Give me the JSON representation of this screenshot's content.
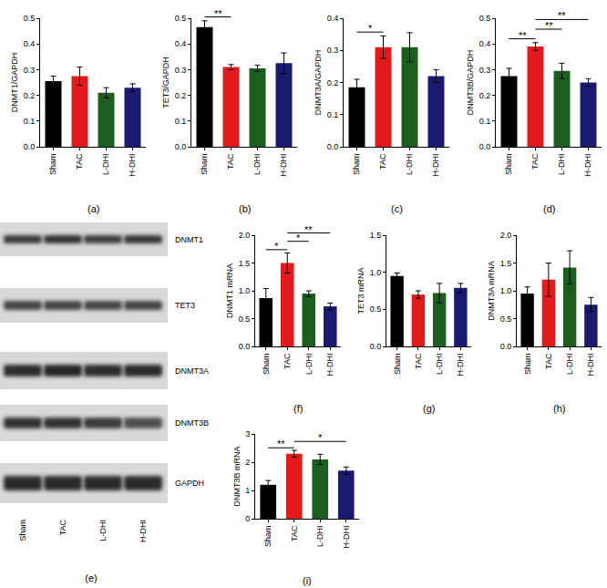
{
  "chart_data": [
    {
      "type": "bar",
      "title": "(a)",
      "y_label": "DNMT1/GAPDH",
      "categories": [
        "Sham",
        "TAC",
        "L-DHI",
        "H-DHI"
      ],
      "values": [
        0.255,
        0.275,
        0.21,
        0.23
      ],
      "errors": [
        0.02,
        0.035,
        0.02,
        0.015
      ],
      "colors": [
        "#000000",
        "#e31a1c",
        "#1b5e20",
        "#1a1a70"
      ],
      "ylim": [
        0,
        0.5
      ],
      "yticks": [
        {
          "value": 0,
          "label": "0.0"
        },
        0.1,
        0.2,
        0.3,
        0.4,
        0.5
      ],
      "significance": []
    },
    {
      "type": "bar",
      "title": "(b)",
      "y_label": "TET3/GAPDH",
      "categories": [
        "Sham",
        "TAC",
        "L-DHI",
        "H-DHI"
      ],
      "values": [
        0.465,
        0.31,
        0.305,
        0.325
      ],
      "errors": [
        0.025,
        0.01,
        0.012,
        0.04
      ],
      "colors": [
        "#000000",
        "#e31a1c",
        "#1b5e20",
        "#1a1a70"
      ],
      "ylim": [
        0,
        0.5
      ],
      "yticks": [
        {
          "value": 0,
          "label": "0.0"
        },
        0.1,
        0.2,
        0.3,
        0.4,
        0.5
      ],
      "significance": [
        {
          "from": "Sham",
          "to": "TAC",
          "text": "**"
        }
      ]
    },
    {
      "type": "bar",
      "title": "(c)",
      "y_label": "DNMT3A/GAPDH",
      "categories": [
        "Sham",
        "TAC",
        "L-DHI",
        "H-DHI"
      ],
      "values": [
        0.185,
        0.31,
        0.31,
        0.22
      ],
      "errors": [
        0.025,
        0.035,
        0.045,
        0.02
      ],
      "colors": [
        "#000000",
        "#e31a1c",
        "#1b5e20",
        "#1a1a70"
      ],
      "ylim": [
        0,
        0.4
      ],
      "yticks": [
        {
          "value": 0,
          "label": "0.0"
        },
        0.1,
        0.2,
        0.3,
        0.4
      ],
      "significance": [
        {
          "from": "Sham",
          "to": "TAC",
          "text": "*"
        }
      ]
    },
    {
      "type": "bar",
      "title": "(d)",
      "y_label": "DNMT3B/GAPDH",
      "categories": [
        "Sham",
        "TAC",
        "L-DHI",
        "H-DHI"
      ],
      "values": [
        0.275,
        0.39,
        0.295,
        0.25
      ],
      "errors": [
        0.03,
        0.015,
        0.03,
        0.015
      ],
      "colors": [
        "#000000",
        "#e31a1c",
        "#1b5e20",
        "#1a1a70"
      ],
      "ylim": [
        0,
        0.5
      ],
      "yticks": [
        {
          "value": 0,
          "label": "0.0"
        },
        0.1,
        0.2,
        0.3,
        0.4,
        0.5
      ],
      "significance": [
        {
          "from": "Sham",
          "to": "TAC",
          "text": "**"
        },
        {
          "from": "TAC",
          "to": "L-DHI",
          "text": "**"
        },
        {
          "from": "TAC",
          "to": "H-DHI",
          "text": "**"
        }
      ]
    },
    {
      "type": "bar",
      "title": "(f)",
      "y_label": "DNMT1 mRNA",
      "categories": [
        "Sham",
        "TAC",
        "L-DHI",
        "H-DHI"
      ],
      "values": [
        0.87,
        1.5,
        0.95,
        0.72
      ],
      "errors": [
        0.17,
        0.18,
        0.05,
        0.06
      ],
      "colors": [
        "#000000",
        "#e31a1c",
        "#1b5e20",
        "#1a1a70"
      ],
      "ylim": [
        0,
        2
      ],
      "yticks": [
        {
          "value": 0,
          "label": "0.0"
        },
        0.5,
        {
          "value": 1,
          "label": "1.0"
        },
        1.5,
        {
          "value": 2,
          "label": "2.0"
        }
      ],
      "significance": [
        {
          "from": "Sham",
          "to": "TAC",
          "text": "*"
        },
        {
          "from": "TAC",
          "to": "L-DHI",
          "text": "*"
        },
        {
          "from": "TAC",
          "to": "H-DHI",
          "text": "**"
        }
      ]
    },
    {
      "type": "bar",
      "title": "(g)",
      "y_label": "TET3 mRNA",
      "categories": [
        "Sham",
        "TAC",
        "L-DHI",
        "H-DHI"
      ],
      "values": [
        0.95,
        0.7,
        0.72,
        0.79
      ],
      "errors": [
        0.04,
        0.05,
        0.13,
        0.06
      ],
      "colors": [
        "#000000",
        "#e31a1c",
        "#1b5e20",
        "#1a1a70"
      ],
      "ylim": [
        0,
        1.5
      ],
      "yticks": [
        {
          "value": 0,
          "label": "0.0"
        },
        0.5,
        {
          "value": 1,
          "label": "1.0"
        },
        1.5
      ],
      "significance": []
    },
    {
      "type": "bar",
      "title": "(h)",
      "y_label": "DNMT3A mRNA",
      "categories": [
        "Sham",
        "TAC",
        "L-DHI",
        "H-DHI"
      ],
      "values": [
        0.95,
        1.2,
        1.42,
        0.75
      ],
      "errors": [
        0.12,
        0.3,
        0.3,
        0.13
      ],
      "colors": [
        "#000000",
        "#e31a1c",
        "#1b5e20",
        "#1a1a70"
      ],
      "ylim": [
        0,
        2
      ],
      "yticks": [
        {
          "value": 0,
          "label": "0.0"
        },
        0.5,
        {
          "value": 1,
          "label": "1.0"
        },
        1.5,
        {
          "value": 2,
          "label": "2.0"
        }
      ],
      "significance": []
    },
    {
      "type": "bar",
      "title": "(i)",
      "y_label": "DNMT3B mRNA",
      "categories": [
        "Sham",
        "TAC",
        "L-DHI",
        "H-DHI"
      ],
      "values": [
        1.2,
        2.3,
        2.1,
        1.7
      ],
      "errors": [
        0.15,
        0.12,
        0.18,
        0.13
      ],
      "colors": [
        "#000000",
        "#e31a1c",
        "#1b5e20",
        "#1a1a70"
      ],
      "ylim": [
        0,
        3
      ],
      "yticks": [
        0,
        1,
        2,
        3
      ],
      "significance": [
        {
          "from": "Sham",
          "to": "TAC",
          "text": "**"
        },
        {
          "from": "TAC",
          "to": "H-DHI",
          "text": "*"
        }
      ]
    }
  ],
  "blot": {
    "title": "(e)",
    "bands": [
      "DNMT1",
      "TET3",
      "DNMT3A",
      "DNMT3B",
      "GAPDH"
    ],
    "lanes": [
      "Sham",
      "TAC",
      "L-DHI",
      "H-DHI"
    ]
  }
}
